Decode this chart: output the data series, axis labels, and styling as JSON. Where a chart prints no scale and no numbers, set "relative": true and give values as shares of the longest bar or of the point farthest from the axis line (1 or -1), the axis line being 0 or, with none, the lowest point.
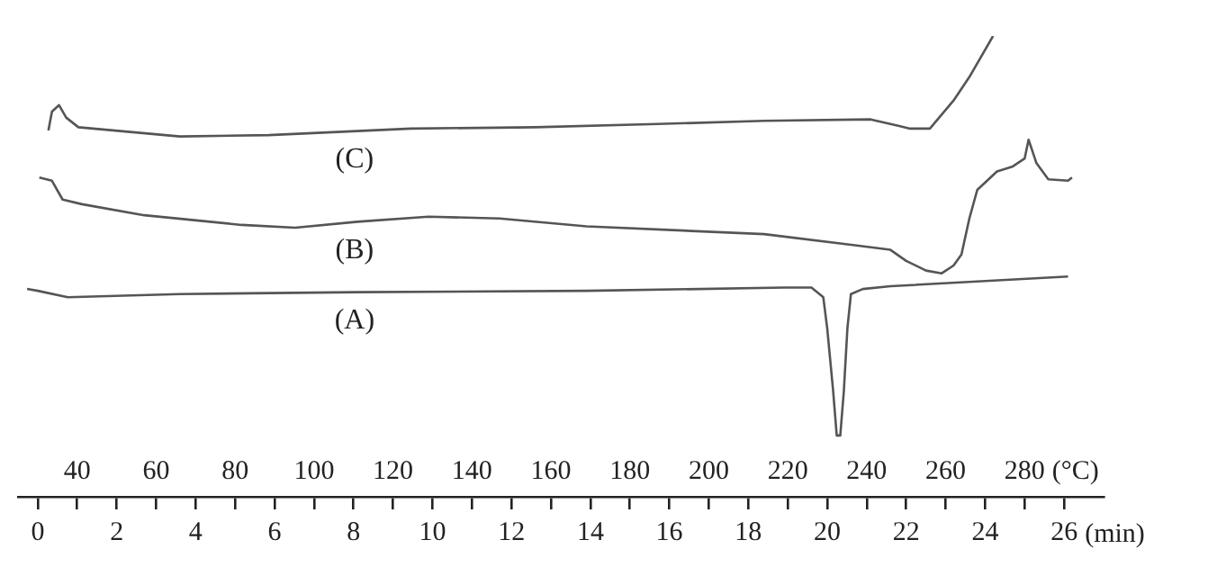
{
  "chart_data": {
    "type": "line",
    "relative": true,
    "xlabel": "(min)",
    "x2label": "(°C)",
    "xlim": [
      -0.5,
      27
    ],
    "xticks": [
      0,
      {
        "value": 1,
        "label": null
      },
      2,
      {
        "value": 3,
        "label": null
      },
      4,
      {
        "value": 5,
        "label": null
      },
      6,
      {
        "value": 7,
        "label": null
      },
      8,
      {
        "value": 9,
        "label": null
      },
      10,
      {
        "value": 11,
        "label": null
      },
      12,
      {
        "value": 13,
        "label": null
      },
      14,
      {
        "value": 15,
        "label": null
      },
      16,
      {
        "value": 17,
        "label": null
      },
      18,
      {
        "value": 19,
        "label": null
      },
      20,
      {
        "value": 21,
        "label": null
      },
      22,
      {
        "value": 23,
        "label": null
      },
      24,
      {
        "value": 25,
        "label": null
      },
      26
    ],
    "x2lim": [
      25,
      300
    ],
    "x2ticks": [
      40,
      60,
      80,
      100,
      120,
      140,
      160,
      180,
      200,
      220,
      240,
      260,
      280
    ],
    "series": [
      {
        "name": "(A)",
        "color": "#555555",
        "x": [
          -0.27,
          0,
          0.76,
          3.6,
          8.1,
          13.9,
          18.9,
          19.6,
          19.9,
          20.0,
          20.15,
          20.24,
          20.33,
          20.42,
          20.51,
          20.6,
          20.9,
          21.6,
          26.1
        ],
        "values": [
          0.451,
          0.447,
          0.433,
          0.44,
          0.444,
          0.447,
          0.454,
          0.454,
          0.433,
          0.365,
          0.229,
          0.133,
          0.133,
          0.229,
          0.365,
          0.44,
          0.451,
          0.457,
          0.478
        ]
      },
      {
        "name": "(B)",
        "color": "#555555",
        "x": [
          0.04,
          0.36,
          0.63,
          1.12,
          2.7,
          5.17,
          6.52,
          8.1,
          9.9,
          11.7,
          13.9,
          18.4,
          20.7,
          21.6,
          22.0,
          22.5,
          22.9,
          23.2,
          23.4,
          23.6,
          23.8,
          24.3,
          24.7,
          25.0,
          25.1,
          25.3,
          25.6,
          26.1,
          26.2
        ],
        "values": [
          0.693,
          0.686,
          0.645,
          0.635,
          0.611,
          0.59,
          0.584,
          0.597,
          0.608,
          0.604,
          0.587,
          0.57,
          0.546,
          0.536,
          0.512,
          0.491,
          0.485,
          0.502,
          0.526,
          0.604,
          0.666,
          0.706,
          0.717,
          0.734,
          0.775,
          0.724,
          0.689,
          0.686,
          0.693
        ]
      },
      {
        "name": "(C)",
        "color": "#555555",
        "x": [
          0.27,
          0.36,
          0.54,
          0.72,
          1.03,
          3.6,
          5.85,
          9.45,
          12.6,
          15.7,
          18.4,
          21.1,
          21.8,
          22.1,
          22.6,
          23.2,
          23.6,
          24.2
        ],
        "values": [
          0.795,
          0.836,
          0.85,
          0.823,
          0.802,
          0.782,
          0.785,
          0.799,
          0.802,
          0.809,
          0.816,
          0.819,
          0.805,
          0.799,
          0.799,
          0.86,
          0.911,
          1
        ]
      }
    ]
  }
}
